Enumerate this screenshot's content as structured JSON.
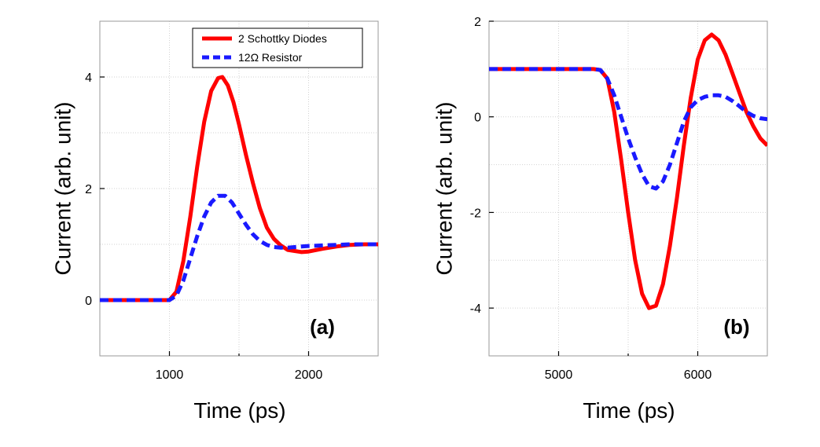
{
  "chart_data": [
    {
      "type": "line",
      "panel_label": "(a)",
      "xlabel": "Time (ps)",
      "ylabel": "Current (arb. unit)",
      "xlim": [
        500,
        2500
      ],
      "ylim": [
        -1,
        5
      ],
      "xticks": [
        1000,
        2000
      ],
      "yticks": [
        0,
        2,
        4
      ],
      "xgrid": [
        1000,
        1500,
        2000
      ],
      "ygrid": [
        0,
        1,
        2,
        3,
        4
      ],
      "grid": true,
      "legend_position": "top-right",
      "series": [
        {
          "name": "2 Schottky Diodes",
          "color": "#ff0000",
          "style": "solid",
          "x": [
            500,
            700,
            900,
            1000,
            1050,
            1100,
            1150,
            1200,
            1250,
            1300,
            1350,
            1380,
            1420,
            1460,
            1500,
            1550,
            1600,
            1650,
            1700,
            1750,
            1800,
            1850,
            1900,
            1950,
            2000,
            2100,
            2200,
            2300,
            2400,
            2500
          ],
          "y": [
            0,
            0,
            0,
            0,
            0.15,
            0.7,
            1.5,
            2.4,
            3.2,
            3.75,
            3.98,
            4.0,
            3.85,
            3.55,
            3.15,
            2.6,
            2.1,
            1.65,
            1.3,
            1.1,
            0.98,
            0.9,
            0.88,
            0.86,
            0.87,
            0.92,
            0.96,
            0.99,
            1.0,
            1.0
          ]
        },
        {
          "name": "12Ω Resistor",
          "color": "#1a1aff",
          "style": "dashed",
          "x": [
            500,
            700,
            900,
            1000,
            1050,
            1100,
            1150,
            1200,
            1250,
            1300,
            1350,
            1400,
            1450,
            1500,
            1550,
            1600,
            1650,
            1700,
            1750,
            1800,
            1850,
            1900,
            1950,
            2000,
            2100,
            2200,
            2300,
            2400,
            2500
          ],
          "y": [
            0,
            0,
            0,
            0,
            0.08,
            0.35,
            0.75,
            1.15,
            1.5,
            1.75,
            1.87,
            1.87,
            1.75,
            1.55,
            1.35,
            1.18,
            1.06,
            0.99,
            0.95,
            0.94,
            0.94,
            0.95,
            0.96,
            0.97,
            0.98,
            0.99,
            1.0,
            1.0,
            1.0
          ]
        }
      ]
    },
    {
      "type": "line",
      "panel_label": "(b)",
      "xlabel": "Time (ps)",
      "ylabel": "Current (arb. unit)",
      "xlim": [
        4500,
        6500
      ],
      "ylim": [
        -5,
        2
      ],
      "xticks": [
        5000,
        6000
      ],
      "yticks": [
        2,
        0,
        -2,
        -4
      ],
      "xgrid": [
        5000,
        5500,
        6000
      ],
      "ygrid": [
        1,
        0,
        -1,
        -2,
        -3,
        -4
      ],
      "grid": true,
      "series": [
        {
          "name": "2 Schottky Diodes",
          "color": "#ff0000",
          "style": "solid",
          "x": [
            4500,
            4800,
            5100,
            5250,
            5300,
            5350,
            5400,
            5450,
            5500,
            5550,
            5600,
            5650,
            5700,
            5750,
            5800,
            5850,
            5900,
            5950,
            6000,
            6050,
            6100,
            6150,
            6200,
            6250,
            6300,
            6350,
            6400,
            6450,
            6500
          ],
          "y": [
            1,
            1,
            1,
            1,
            0.98,
            0.8,
            0.1,
            -0.9,
            -2.0,
            -3.0,
            -3.7,
            -4.0,
            -3.95,
            -3.5,
            -2.7,
            -1.7,
            -0.6,
            0.4,
            1.2,
            1.6,
            1.72,
            1.6,
            1.3,
            0.9,
            0.5,
            0.1,
            -0.2,
            -0.45,
            -0.6
          ]
        },
        {
          "name": "12Ω Resistor",
          "color": "#1a1aff",
          "style": "dashed",
          "x": [
            4500,
            4800,
            5100,
            5250,
            5300,
            5350,
            5400,
            5450,
            5500,
            5550,
            5600,
            5650,
            5700,
            5750,
            5800,
            5850,
            5900,
            5950,
            6000,
            6050,
            6100,
            6150,
            6200,
            6250,
            6300,
            6350,
            6400,
            6450,
            6500
          ],
          "y": [
            1,
            1,
            1,
            1,
            0.98,
            0.8,
            0.45,
            0,
            -0.45,
            -0.85,
            -1.2,
            -1.45,
            -1.5,
            -1.35,
            -1.0,
            -0.55,
            -0.1,
            0.2,
            0.35,
            0.42,
            0.45,
            0.45,
            0.42,
            0.33,
            0.22,
            0.1,
            0.02,
            -0.03,
            -0.05
          ]
        }
      ]
    }
  ]
}
